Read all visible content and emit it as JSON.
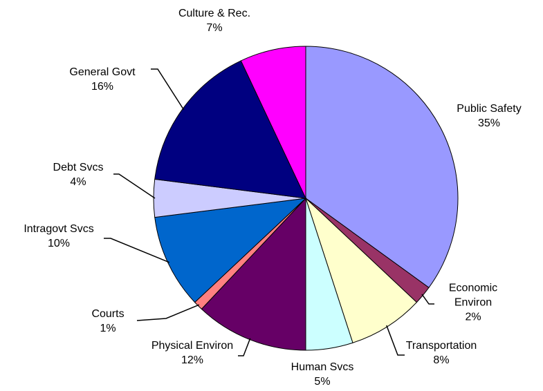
{
  "chart_data": {
    "type": "pie",
    "categories": [
      "Public Safety",
      "Economic Environ",
      "Transportation",
      "Human Svcs",
      "Physical Environ",
      "Courts",
      "Intragovt Svcs",
      "Debt Svcs",
      "General Govt",
      "Culture & Rec."
    ],
    "values": [
      35,
      2,
      8,
      5,
      12,
      1,
      10,
      4,
      16,
      7
    ],
    "value_labels": [
      "35%",
      "2%",
      "8%",
      "5%",
      "12%",
      "1%",
      "10%",
      "4%",
      "16%",
      "7%"
    ],
    "colors": [
      "#9999ff",
      "#993366",
      "#ffffcc",
      "#ccffff",
      "#660066",
      "#ff8080",
      "#0066cc",
      "#ccccff",
      "#000080",
      "#ff00ff"
    ]
  }
}
